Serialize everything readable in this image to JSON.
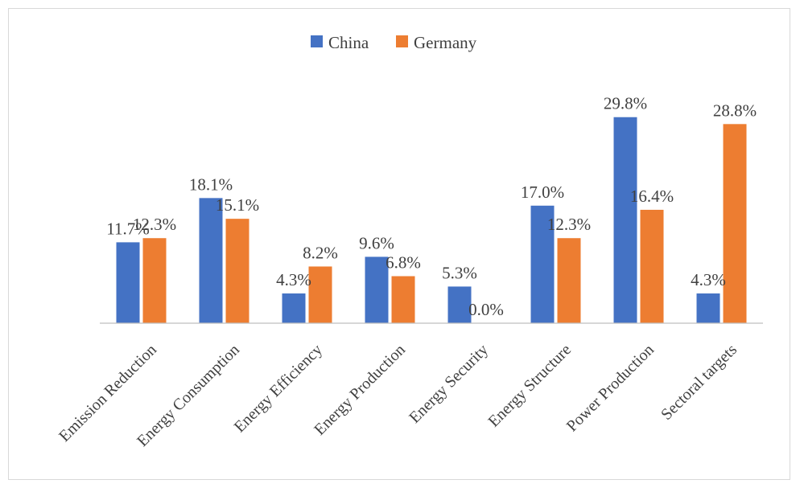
{
  "chart_data": {
    "type": "bar",
    "categories": [
      "Emission Reduction",
      "Energy Consumption",
      "Energy Efficiency",
      "Energy Production",
      "Energy Security",
      "Energy Structure",
      "Power Production",
      "Sectoral targets"
    ],
    "series": [
      {
        "name": "China",
        "color": "#4472c4",
        "values": [
          11.7,
          18.1,
          4.3,
          9.6,
          5.3,
          17.0,
          29.8,
          4.3
        ],
        "labels": [
          "11.7%",
          "18.1%",
          "4.3%",
          "9.6%",
          "5.3%",
          "17.0%",
          "29.8%",
          "4.3%"
        ]
      },
      {
        "name": "Germany",
        "color": "#ed7d31",
        "values": [
          12.3,
          15.1,
          8.2,
          6.8,
          0.0,
          12.3,
          16.4,
          28.8
        ],
        "labels": [
          "12.3%",
          "15.1%",
          "8.2%",
          "6.8%",
          "0.0%",
          "12.3%",
          "16.4%",
          "28.8%"
        ]
      }
    ],
    "ylim": [
      0,
      30
    ],
    "grid": false,
    "legend_position": "top"
  }
}
